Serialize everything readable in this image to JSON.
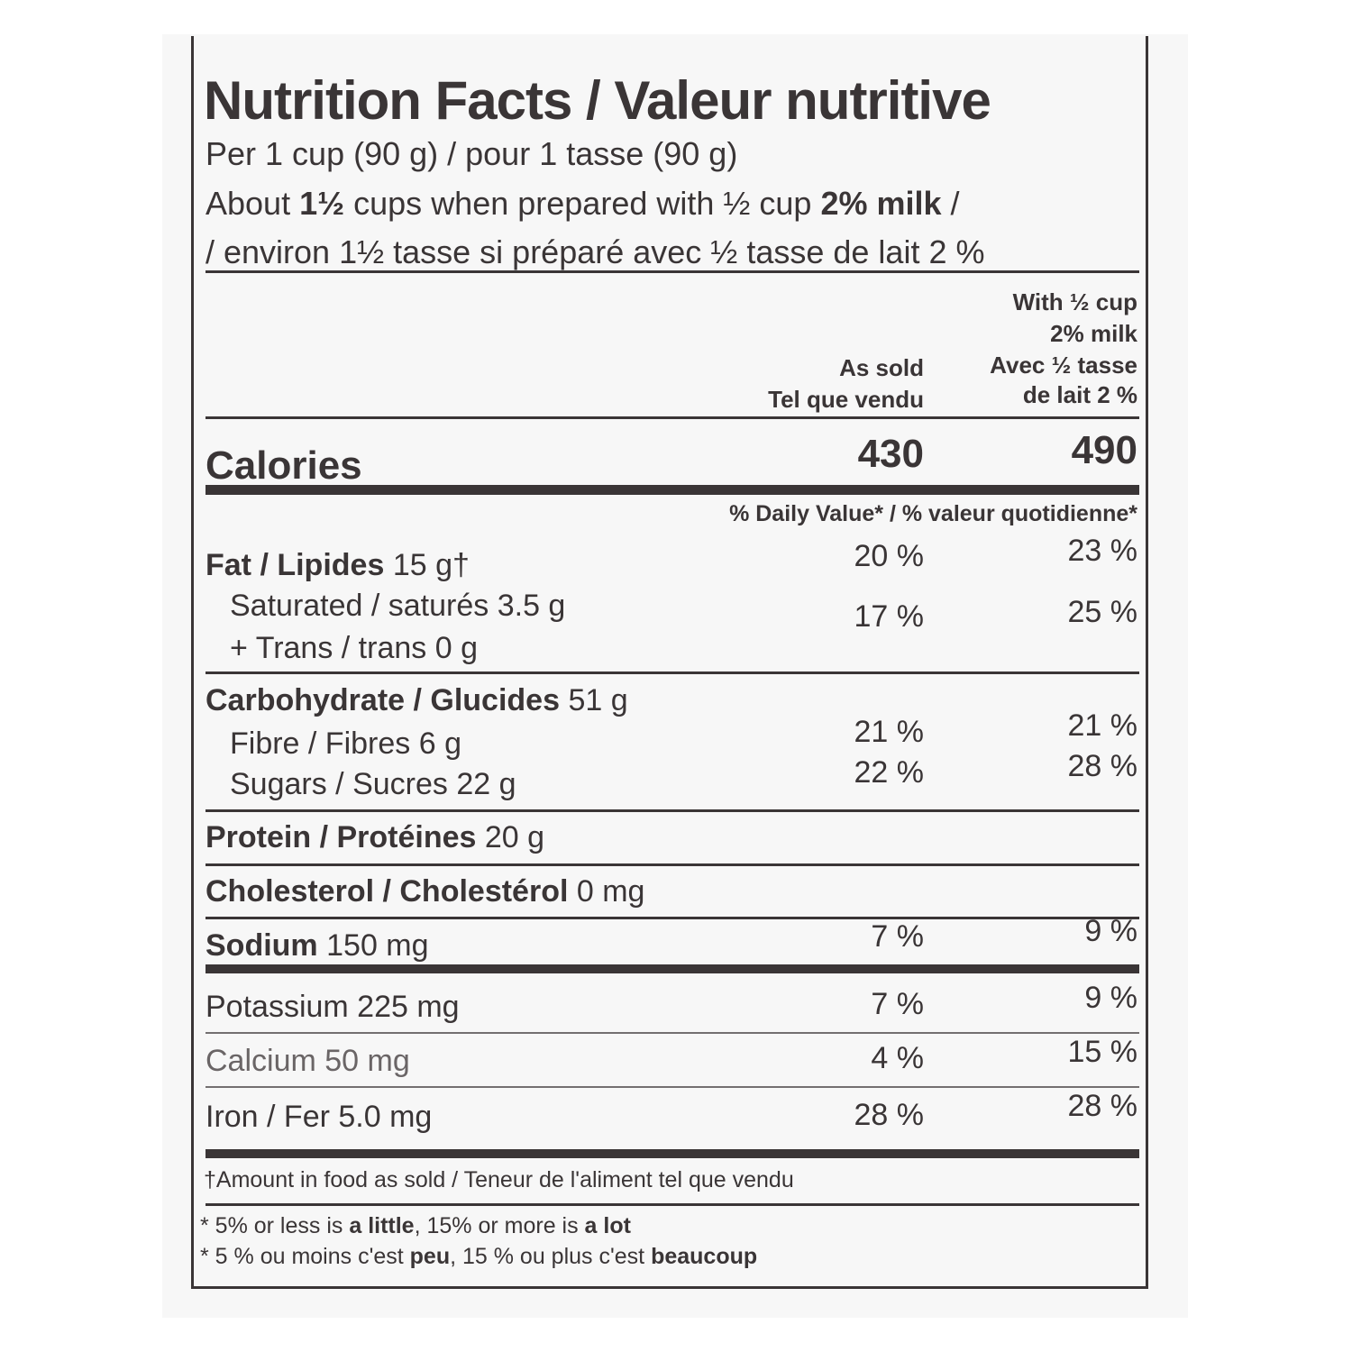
{
  "title": "Nutrition Facts / Valeur nutritive",
  "serving": {
    "line1": "Per 1 cup (90 g) / pour 1 tasse (90 g)",
    "line2_pre": "About ",
    "line2_b1": "1½",
    "line2_mid": " cups when prepared with ½ cup ",
    "line2_b2": "2% milk",
    "line2_post": " /",
    "line3": "/ environ 1½ tasse si préparé avec ½ tasse de lait 2 %"
  },
  "columns": {
    "as_sold": [
      "As sold",
      "Tel que vendu"
    ],
    "with_milk": [
      "With ½ cup",
      "2% milk",
      "Avec ½ tasse",
      "de lait 2 %"
    ]
  },
  "calories": {
    "label": "Calories",
    "as_sold": "430",
    "with_milk": "490"
  },
  "daily_value_header": "% Daily Value* / % valeur quotidienne*",
  "nutrients": {
    "fat": {
      "label": "Fat / Lipides",
      "amount": "15 g†",
      "as_sold": "20 %",
      "with_milk": "23 %"
    },
    "saturated": {
      "label": "Saturated / saturés 3.5 g",
      "as_sold": "17 %",
      "with_milk": "25 %"
    },
    "trans": {
      "label": "+ Trans / trans 0 g"
    },
    "carbohydrate": {
      "label": "Carbohydrate / Glucides",
      "amount": "51 g"
    },
    "fibre": {
      "label": "Fibre / Fibres 6 g",
      "as_sold": "21 %",
      "with_milk": "21 %"
    },
    "sugars": {
      "label": "Sugars / Sucres 22 g",
      "as_sold": "22 %",
      "with_milk": "28 %"
    },
    "protein": {
      "label": "Protein / Protéines",
      "amount": "20 g"
    },
    "cholesterol": {
      "label": "Cholesterol / Cholestérol",
      "amount": "0 mg"
    },
    "sodium": {
      "label": "Sodium",
      "amount": "150 mg",
      "as_sold": "7 %",
      "with_milk": "9 %"
    },
    "potassium": {
      "label": "Potassium 225 mg",
      "as_sold": "7 %",
      "with_milk": "9 %"
    },
    "calcium": {
      "label": "Calcium 50 mg",
      "as_sold": "4 %",
      "with_milk": "15 %"
    },
    "iron": {
      "label": "Iron / Fer 5.0 mg",
      "as_sold": "28 %",
      "with_milk": "28 %"
    }
  },
  "footnotes": {
    "dagger": "†Amount in food as sold / Teneur de l'aliment tel que vendu",
    "en_pre": "* 5% or less is ",
    "en_b1": "a little",
    "en_mid": ", 15% or more is ",
    "en_b2": "a lot",
    "fr_pre": "* 5 % ou moins c'est ",
    "fr_b1": "peu",
    "fr_mid": ", 15 % ou plus c'est ",
    "fr_b2": "beaucoup"
  },
  "colors": {
    "ink": "#3a3536",
    "paper": "#f7f7f7"
  }
}
